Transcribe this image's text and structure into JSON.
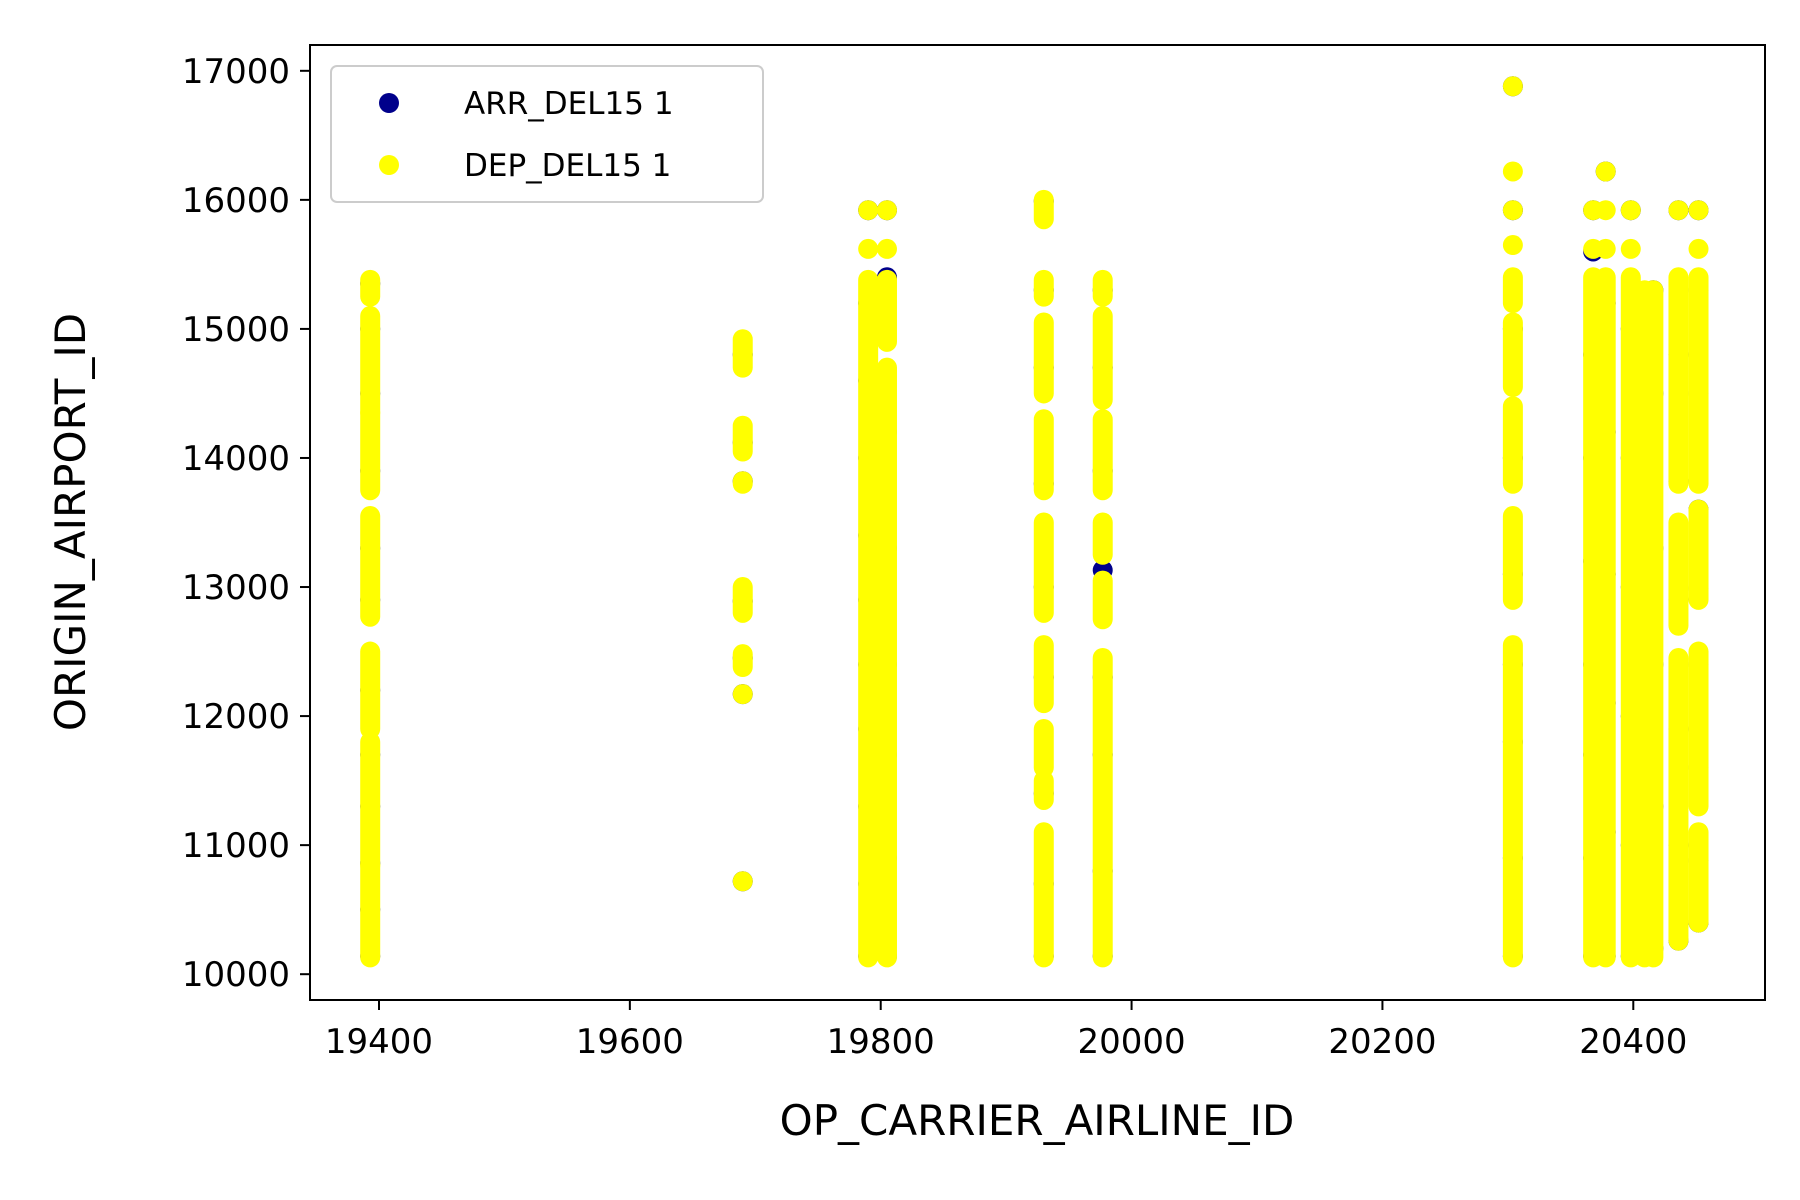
{
  "chart_data": {
    "type": "scatter",
    "title": "",
    "xlabel": "OP_CARRIER_AIRLINE_ID",
    "ylabel": "ORIGIN_AIRPORT_ID",
    "xlim": [
      19345,
      20505
    ],
    "ylim": [
      9800,
      17200
    ],
    "xticks": [
      19400,
      19600,
      19800,
      20000,
      20200,
      20400
    ],
    "yticks": [
      10000,
      11000,
      12000,
      13000,
      14000,
      15000,
      16000,
      17000
    ],
    "legend_position": "top-left",
    "grid": false,
    "series": [
      {
        "name": "ARR_DEL15 1",
        "color": "#00008b",
        "points": [
          [
            19393,
            10140
          ],
          [
            19393,
            10500
          ],
          [
            19393,
            10860
          ],
          [
            19393,
            11300
          ],
          [
            19393,
            11700
          ],
          [
            19393,
            12200
          ],
          [
            19393,
            12900
          ],
          [
            19393,
            13300
          ],
          [
            19393,
            13900
          ],
          [
            19393,
            14500
          ],
          [
            19393,
            15000
          ],
          [
            19393,
            15350
          ],
          [
            19690,
            10720
          ],
          [
            19690,
            12170
          ],
          [
            19690,
            12450
          ],
          [
            19690,
            12890
          ],
          [
            19690,
            13820
          ],
          [
            19690,
            14120
          ],
          [
            19690,
            14800
          ],
          [
            19790,
            10140
          ],
          [
            19790,
            10700
          ],
          [
            19790,
            11300
          ],
          [
            19790,
            11900
          ],
          [
            19790,
            12400
          ],
          [
            19790,
            12900
          ],
          [
            19790,
            13400
          ],
          [
            19790,
            14000
          ],
          [
            19790,
            14600
          ],
          [
            19790,
            15200
          ],
          [
            19790,
            15920
          ],
          [
            19805,
            10140
          ],
          [
            19805,
            10900
          ],
          [
            19805,
            11700
          ],
          [
            19805,
            12400
          ],
          [
            19805,
            13300
          ],
          [
            19805,
            14200
          ],
          [
            19805,
            15400
          ],
          [
            19805,
            15920
          ],
          [
            19930,
            10140
          ],
          [
            19930,
            10700
          ],
          [
            19930,
            11400
          ],
          [
            19930,
            12300
          ],
          [
            19930,
            13000
          ],
          [
            19930,
            13800
          ],
          [
            19930,
            14700
          ],
          [
            19930,
            15300
          ],
          [
            19930,
            15990
          ],
          [
            19977,
            10140
          ],
          [
            19977,
            10800
          ],
          [
            19977,
            11700
          ],
          [
            19977,
            12300
          ],
          [
            19977,
            13130
          ],
          [
            19977,
            13900
          ],
          [
            19977,
            14700
          ],
          [
            19977,
            15300
          ],
          [
            20304,
            10140
          ],
          [
            20304,
            10900
          ],
          [
            20304,
            11800
          ],
          [
            20304,
            12400
          ],
          [
            20304,
            13100
          ],
          [
            20304,
            14000
          ],
          [
            20304,
            15000
          ],
          [
            20304,
            15920
          ],
          [
            20304,
            16880
          ],
          [
            20368,
            10140
          ],
          [
            20368,
            10900
          ],
          [
            20368,
            11700
          ],
          [
            20368,
            12400
          ],
          [
            20368,
            13200
          ],
          [
            20368,
            14000
          ],
          [
            20368,
            14800
          ],
          [
            20368,
            15600
          ],
          [
            20368,
            15920
          ],
          [
            20378,
            10140
          ],
          [
            20378,
            11100
          ],
          [
            20378,
            12100
          ],
          [
            20378,
            13100
          ],
          [
            20378,
            14200
          ],
          [
            20378,
            15200
          ],
          [
            20378,
            16220
          ],
          [
            20398,
            10140
          ],
          [
            20398,
            11000
          ],
          [
            20398,
            12000
          ],
          [
            20398,
            13000
          ],
          [
            20398,
            14000
          ],
          [
            20398,
            15000
          ],
          [
            20398,
            15920
          ],
          [
            20409,
            10140
          ],
          [
            20409,
            11200
          ],
          [
            20409,
            12300
          ],
          [
            20409,
            13400
          ],
          [
            20409,
            14500
          ],
          [
            20416,
            10200
          ],
          [
            20416,
            11300
          ],
          [
            20416,
            12400
          ],
          [
            20416,
            13300
          ],
          [
            20416,
            14500
          ],
          [
            20416,
            15300
          ],
          [
            20436,
            10260
          ],
          [
            20436,
            11000
          ],
          [
            20436,
            11900
          ],
          [
            20436,
            12900
          ],
          [
            20436,
            13820
          ],
          [
            20436,
            14800
          ],
          [
            20436,
            15920
          ],
          [
            20452,
            10400
          ],
          [
            20452,
            10880
          ],
          [
            20452,
            11600
          ],
          [
            20452,
            12400
          ],
          [
            20452,
            12990
          ],
          [
            20452,
            13600
          ],
          [
            20452,
            14500
          ],
          [
            20452,
            15300
          ],
          [
            20452,
            15920
          ]
        ]
      },
      {
        "name": "DEP_DEL15 1",
        "color": "#ffff00",
        "segments": [
          [
            19393,
            10130,
            10850
          ],
          [
            19393,
            10840,
            11800
          ],
          [
            19393,
            11900,
            12500
          ],
          [
            19393,
            12770,
            13550
          ],
          [
            19393,
            13750,
            14350
          ],
          [
            19393,
            14350,
            15100
          ],
          [
            19393,
            15250,
            15380
          ],
          [
            19690,
            10720,
            10720
          ],
          [
            19690,
            12170,
            12170
          ],
          [
            19690,
            12380,
            12480
          ],
          [
            19690,
            12800,
            13000
          ],
          [
            19690,
            13800,
            13820
          ],
          [
            19690,
            14050,
            14250
          ],
          [
            19690,
            14700,
            14920
          ],
          [
            19790,
            10130,
            15380
          ],
          [
            19790,
            15620,
            15620
          ],
          [
            19790,
            15920,
            15920
          ],
          [
            19805,
            10130,
            14700
          ],
          [
            19805,
            14900,
            15380
          ],
          [
            19805,
            15620,
            15620
          ],
          [
            19805,
            15920,
            15920
          ],
          [
            19930,
            10130,
            11100
          ],
          [
            19930,
            11350,
            11500
          ],
          [
            19930,
            11600,
            11900
          ],
          [
            19930,
            12100,
            12550
          ],
          [
            19930,
            12800,
            13500
          ],
          [
            19930,
            13750,
            14300
          ],
          [
            19930,
            14500,
            15050
          ],
          [
            19930,
            15250,
            15380
          ],
          [
            19930,
            15850,
            16000
          ],
          [
            19977,
            10130,
            12450
          ],
          [
            19977,
            12750,
            13050
          ],
          [
            19977,
            13250,
            13500
          ],
          [
            19977,
            13750,
            14300
          ],
          [
            19977,
            14450,
            15100
          ],
          [
            19977,
            15250,
            15380
          ],
          [
            20304,
            10130,
            12550
          ],
          [
            20304,
            12900,
            13550
          ],
          [
            20304,
            13800,
            14400
          ],
          [
            20304,
            14550,
            15050
          ],
          [
            20304,
            15200,
            15400
          ],
          [
            20304,
            15650,
            15650
          ],
          [
            20304,
            15920,
            15920
          ],
          [
            20304,
            16220,
            16220
          ],
          [
            20304,
            16880,
            16880
          ],
          [
            20368,
            10130,
            15400
          ],
          [
            20368,
            15620,
            15620
          ],
          [
            20368,
            15920,
            15920
          ],
          [
            20378,
            10130,
            15400
          ],
          [
            20378,
            15620,
            15620
          ],
          [
            20378,
            15920,
            15920
          ],
          [
            20378,
            16220,
            16220
          ],
          [
            20398,
            10130,
            15400
          ],
          [
            20398,
            15620,
            15620
          ],
          [
            20398,
            15920,
            15920
          ],
          [
            20409,
            10130,
            15300
          ],
          [
            20416,
            10130,
            15300
          ],
          [
            20436,
            10260,
            12450
          ],
          [
            20436,
            12700,
            13500
          ],
          [
            20436,
            13800,
            15400
          ],
          [
            20436,
            15920,
            15920
          ],
          [
            20452,
            10400,
            11100
          ],
          [
            20452,
            11300,
            12500
          ],
          [
            20452,
            12900,
            13600
          ],
          [
            20452,
            13800,
            15400
          ],
          [
            20452,
            15620,
            15620
          ],
          [
            20452,
            15920,
            15920
          ]
        ]
      }
    ]
  }
}
